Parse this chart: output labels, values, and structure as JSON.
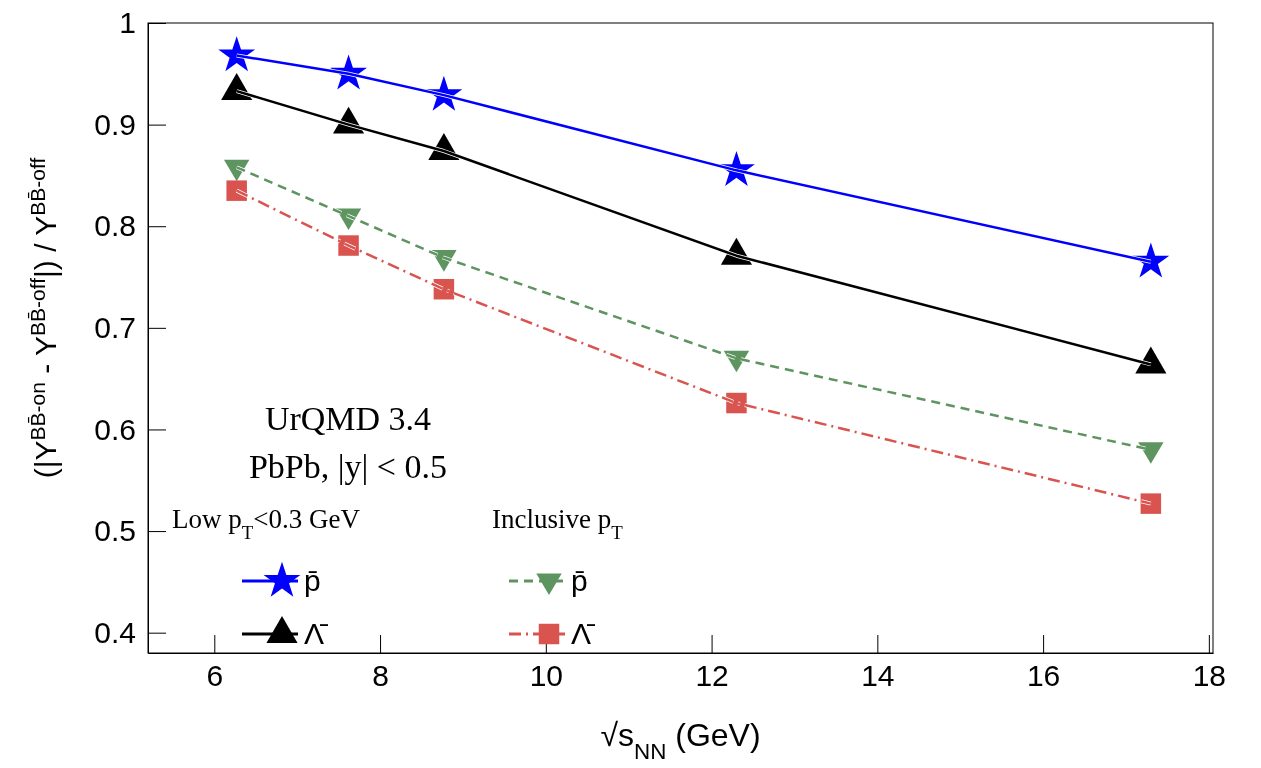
{
  "chart_data": {
    "type": "line",
    "xlabel": "√s$_{NN}$  (GeV)",
    "ylabel": "(|Y$^{BB̄-on}$ - Y$^{BB̄-off}$|) / Y$^{BB̄-off}$",
    "x": [
      6.27,
      7.62,
      8.77,
      12.3,
      17.3
    ],
    "xlim": [
      5.2,
      18.05
    ],
    "ylim": [
      0.38,
      1.0
    ],
    "xticks": [
      6,
      8,
      10,
      12,
      14,
      16,
      18
    ],
    "yticks": [
      0.4,
      0.5,
      0.6,
      0.7,
      0.8,
      0.9,
      1
    ],
    "grid": false,
    "legend": "bottom left",
    "annotations": [
      "UrQMD 3.4",
      "PbPb, |y| < 0.5",
      "Low p$_{T}$<0.3 GeV",
      "Inclusive p$_{T}$"
    ],
    "series": [
      {
        "name": "p̄",
        "color": "#0000ff",
        "marker": "star",
        "line_style": "solid",
        "values": [
          0.968,
          0.95,
          0.929,
          0.855,
          0.765
        ]
      },
      {
        "name": "Λ̄",
        "color": "#000000",
        "marker": "triangle",
        "line_style": "solid",
        "values": [
          0.933,
          0.9,
          0.874,
          0.771,
          0.664
        ]
      },
      {
        "name": "p̄",
        "color": "#5e9460",
        "marker": "triangle-down",
        "line_style": "dashed",
        "values": [
          0.858,
          0.81,
          0.769,
          0.67,
          0.58
        ]
      },
      {
        "name": "Λ̄",
        "color": "#d9534f",
        "marker": "square",
        "line_style": "dashdot",
        "values": [
          0.835,
          0.781,
          0.738,
          0.626,
          0.527
        ]
      }
    ]
  }
}
